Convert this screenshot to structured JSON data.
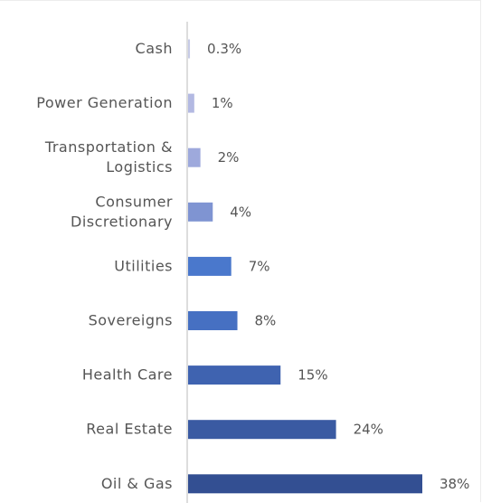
{
  "chart_data": {
    "type": "bar",
    "orientation": "horizontal",
    "categories": [
      [
        "Cash"
      ],
      [
        "Power Generation"
      ],
      [
        "Transportation &",
        "Logistics"
      ],
      [
        "Consumer",
        "Discretionary"
      ],
      [
        "Utilities"
      ],
      [
        "Sovereigns"
      ],
      [
        "Health Care"
      ],
      [
        "Real Estate"
      ],
      [
        "Oil & Gas"
      ]
    ],
    "values": [
      0.3,
      1,
      2,
      4,
      7,
      8,
      15,
      24,
      38
    ],
    "value_labels": [
      "0.3%",
      "1%",
      "2%",
      "4%",
      "7%",
      "8%",
      "15%",
      "24%",
      "38%"
    ],
    "colors": [
      "#c7cbe6",
      "#b3b9e2",
      "#9ea9dc",
      "#7f94d2",
      "#4a78cc",
      "#4670c2",
      "#3f63b0",
      "#3a5aa2",
      "#334f92"
    ],
    "title": "",
    "xlabel": "",
    "ylabel": "",
    "xlim": [
      0,
      38
    ],
    "grid": false,
    "legend": "none"
  }
}
